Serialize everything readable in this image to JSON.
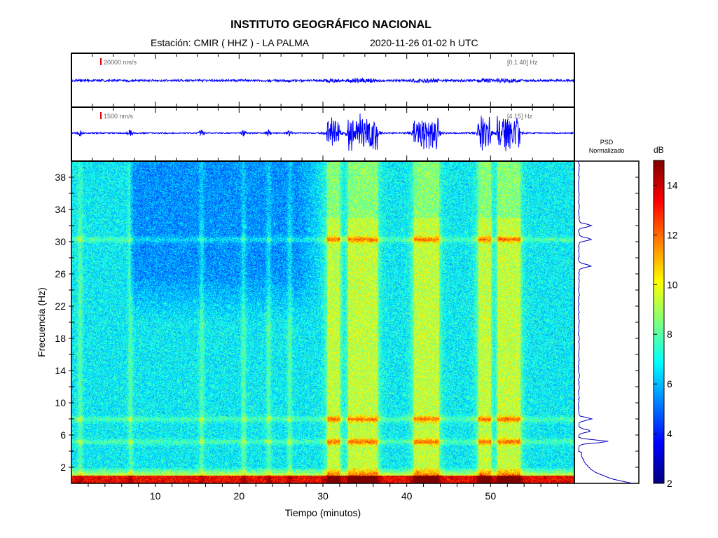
{
  "header": {
    "title": "INSTITUTO GEOGRÁFICO NACIONAL",
    "station": "Estación:  CMIR ( HHZ ) - LA PALMA",
    "datetime": "2020-11-26  01-02 h UTC"
  },
  "traces": [
    {
      "scale_label": "20000 nm/s",
      "band_label": "[0.1 40] Hz"
    },
    {
      "scale_label": "1500 nm/s",
      "band_label": "[4 15] Hz"
    }
  ],
  "psd": {
    "title_line1": "PSD",
    "title_line2": "Normalizado"
  },
  "colorbar": {
    "label": "dB",
    "ticks": [
      "2",
      "4",
      "6",
      "8",
      "10",
      "12",
      "14"
    ],
    "range": [
      2,
      15
    ]
  },
  "chart_data": {
    "type": "heatmap",
    "title": "INSTITUTO GEOGRÁFICO NACIONAL",
    "xlabel": "Tiempo (minutos)",
    "ylabel": "Frecuencia (Hz)",
    "xlim": [
      0,
      60
    ],
    "ylim": [
      0,
      40
    ],
    "x_ticks": [
      "10",
      "20",
      "30",
      "40",
      "50"
    ],
    "y_ticks": [
      "2",
      "6",
      "10",
      "14",
      "18",
      "22",
      "26",
      "30",
      "34",
      "38"
    ],
    "colorscale": "jet",
    "zlim": [
      2,
      15
    ],
    "event_intervals_min": [
      [
        30.5,
        32
      ],
      [
        33,
        36.5
      ],
      [
        40.8,
        43.8
      ],
      [
        48.5,
        50
      ],
      [
        50.8,
        53.5
      ]
    ],
    "minor_events_min": [
      1,
      7,
      15.5,
      20.5,
      23.5,
      26
    ],
    "spectral_lines_hz": [
      5.2,
      8,
      30.3
    ],
    "psd_peaks_hz": [
      0.3,
      5.2,
      6.5,
      8,
      27,
      30.3,
      32
    ]
  }
}
